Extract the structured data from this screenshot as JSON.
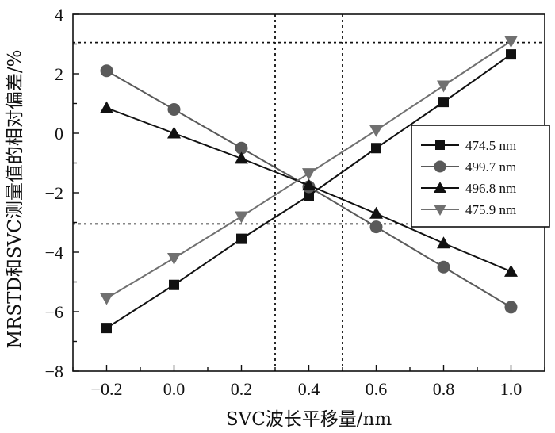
{
  "chart_data": {
    "type": "line",
    "xlabel": "SVC波长平移量/nm",
    "ylabel": "MRSTD和SVC测量值的相对偏差/%",
    "xlim": [
      -0.3,
      1.1
    ],
    "ylim": [
      -8,
      4
    ],
    "xticks": [
      -0.2,
      0.0,
      0.2,
      0.4,
      0.6,
      0.8,
      1.0
    ],
    "xtick_labels": [
      "−0.2",
      "0.0",
      "0.2",
      "0.4",
      "0.6",
      "0.8",
      "1.0"
    ],
    "yticks": [
      -8,
      -6,
      -4,
      -2,
      0,
      2,
      4
    ],
    "ytick_labels": [
      "−8",
      "−6",
      "−4",
      "−2",
      "0",
      "2",
      "4"
    ],
    "x": [
      -0.2,
      0.0,
      0.2,
      0.4,
      0.6,
      0.8,
      1.0
    ],
    "series": [
      {
        "name": "474.5 nm",
        "marker": "square",
        "color": "#111111",
        "values": [
          -6.55,
          -5.1,
          -3.55,
          -2.1,
          -0.5,
          1.05,
          2.65
        ]
      },
      {
        "name": "499.7 nm",
        "marker": "circle",
        "color": "#5a5a5a",
        "values": [
          2.1,
          0.8,
          -0.5,
          -1.8,
          -3.15,
          -4.5,
          -5.85
        ]
      },
      {
        "name": "496.8 nm",
        "marker": "triangle-up",
        "color": "#111111",
        "values": [
          0.85,
          0.0,
          -0.85,
          -1.75,
          -2.7,
          -3.7,
          -4.65
        ]
      },
      {
        "name": "475.9 nm",
        "marker": "triangle-down",
        "color": "#707070",
        "values": [
          -5.55,
          -4.2,
          -2.8,
          -1.35,
          0.1,
          1.6,
          3.1
        ]
      }
    ],
    "reference_lines": {
      "horizontal": [
        3.05,
        -3.05
      ],
      "vertical": [
        0.3,
        0.5
      ],
      "style": "dotted"
    },
    "grid": false,
    "legend_position": "right"
  }
}
